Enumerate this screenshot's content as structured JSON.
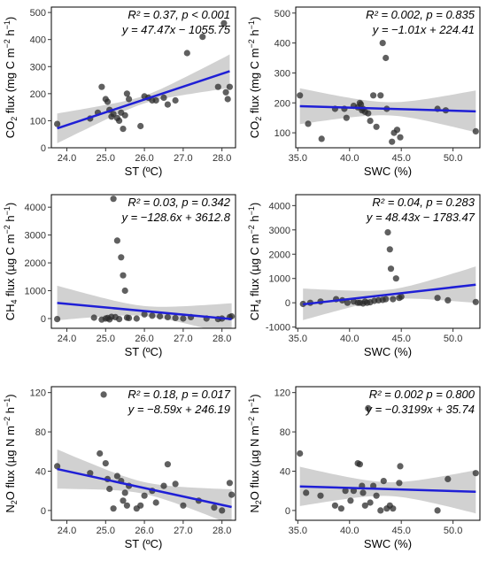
{
  "chart_data": [
    {
      "type": "scatter",
      "xlabel": "ST (ºC)",
      "ylabel": "CO2 flux (mg C m-2 h-1)",
      "ylabel_parts": [
        "CO",
        "2",
        " flux (mg C m",
        "−2",
        " h",
        "−1",
        ")"
      ],
      "xlim": [
        23.6,
        28.35
      ],
      "ylim": [
        0,
        520
      ],
      "xticks": [
        24.0,
        25.0,
        26.0,
        27.0,
        28.0
      ],
      "xtick_labels": [
        "24.0",
        "25.0",
        "26.0",
        "27.0",
        "28.0"
      ],
      "yticks": [
        0,
        100,
        200,
        300,
        400,
        500
      ],
      "ytick_labels": [
        "0",
        "100",
        "200",
        "300",
        "400",
        "500"
      ],
      "annotation_r2": "R² = 0.37, p < 0.001",
      "annotation_eq": "y = 47.47x − 1055.75",
      "regression": {
        "slope": 47.47,
        "intercept": -1055.75
      },
      "ci_halfwidth": [
        55,
        14,
        62
      ],
      "x": [
        23.75,
        24.6,
        24.8,
        24.9,
        25.0,
        25.05,
        25.1,
        25.15,
        25.2,
        25.3,
        25.35,
        25.4,
        25.45,
        25.5,
        25.55,
        25.6,
        25.9,
        26.0,
        26.1,
        26.2,
        26.3,
        26.5,
        26.6,
        26.8,
        27.1,
        27.5,
        27.9,
        28.05,
        28.1,
        28.15,
        28.2
      ],
      "y": [
        88,
        108,
        130,
        225,
        180,
        170,
        140,
        115,
        125,
        110,
        100,
        130,
        70,
        120,
        200,
        180,
        80,
        190,
        185,
        175,
        175,
        185,
        160,
        175,
        350,
        410,
        225,
        460,
        205,
        180,
        225
      ]
    },
    {
      "type": "scatter",
      "xlabel": "SWC (%)",
      "ylabel": "CO2 flux (mg C m-2 h-1)",
      "ylabel_parts": [
        "CO",
        "2",
        " flux (mg C m",
        "−2",
        " h",
        "−1",
        ")"
      ],
      "xlim": [
        34.8,
        52.6
      ],
      "ylim": [
        50,
        520
      ],
      "xticks": [
        35.0,
        40.0,
        45.0,
        50.0
      ],
      "xtick_labels": [
        "35.0",
        "40.0",
        "45.0",
        "50.0"
      ],
      "yticks": [
        100,
        200,
        300,
        400,
        500
      ],
      "ytick_labels": [
        "100",
        "200",
        "300",
        "400",
        "500"
      ],
      "annotation_r2": "R² = 0.002, p = 0.835",
      "annotation_eq": "y = −1.01x + 224.41",
      "regression": {
        "slope": -1.01,
        "intercept": 224.41
      },
      "ci_halfwidth": [
        60,
        22,
        70
      ],
      "x": [
        35.2,
        36.0,
        37.3,
        38.6,
        39.5,
        39.7,
        40.4,
        40.8,
        41.0,
        41.1,
        41.2,
        41.3,
        41.5,
        41.8,
        42.0,
        42.3,
        42.6,
        43.0,
        43.2,
        43.5,
        43.6,
        44.1,
        44.3,
        44.6,
        44.9,
        48.5,
        49.3,
        52.2
      ],
      "y": [
        225,
        130,
        80,
        180,
        180,
        150,
        190,
        185,
        200,
        195,
        175,
        180,
        170,
        165,
        140,
        225,
        120,
        225,
        400,
        350,
        180,
        70,
        100,
        110,
        85,
        180,
        175,
        105
      ]
    },
    {
      "type": "scatter",
      "xlabel": "ST (ºC)",
      "ylabel": "CH4 flux (µg C m-2 h-1)",
      "ylabel_parts": [
        "CH",
        "4",
        " flux (µg C m",
        "−2",
        " h",
        "−1",
        ")"
      ],
      "xlim": [
        23.6,
        28.35
      ],
      "ylim": [
        -350,
        4450
      ],
      "xticks": [
        24.0,
        25.0,
        26.0,
        27.0,
        28.0
      ],
      "xtick_labels": [
        "24.0",
        "25.0",
        "26.0",
        "27.0",
        "28.0"
      ],
      "yticks": [
        0,
        1000,
        2000,
        3000,
        4000
      ],
      "ytick_labels": [
        "0",
        "1000",
        "2000",
        "3000",
        "4000"
      ],
      "annotation_r2": "R² = 0.03, p = 0.342",
      "annotation_eq": "y = −128.6x + 3612.8",
      "regression": {
        "slope": -128.6,
        "intercept": 3612.8
      },
      "ci_halfwidth": [
        620,
        180,
        570
      ],
      "x": [
        23.75,
        24.7,
        24.9,
        25.0,
        25.05,
        25.1,
        25.15,
        25.2,
        25.25,
        25.3,
        25.35,
        25.4,
        25.45,
        25.5,
        25.55,
        25.6,
        25.8,
        26.0,
        26.2,
        26.4,
        26.6,
        26.8,
        27.0,
        27.2,
        27.6,
        27.9,
        28.0,
        28.2,
        28.25
      ],
      "y": [
        -20,
        30,
        -40,
        0,
        20,
        -30,
        60,
        4300,
        50,
        2800,
        -20,
        2200,
        1550,
        1000,
        30,
        20,
        0,
        150,
        100,
        80,
        50,
        20,
        0,
        50,
        0,
        -20,
        0,
        50,
        80
      ]
    },
    {
      "type": "scatter",
      "xlabel": "SWC (%)",
      "ylabel": "CH4 flux (µg C m-2 h-1)",
      "ylabel_parts": [
        "CH",
        "4",
        " flux (µg C m",
        "−2",
        " h",
        "−1",
        ")"
      ],
      "xlim": [
        34.8,
        52.6
      ],
      "ylim": [
        -1050,
        4450
      ],
      "xticks": [
        35.0,
        40.0,
        45.0,
        50.0
      ],
      "xtick_labels": [
        "35.0",
        "40.0",
        "45.0",
        "50.0"
      ],
      "yticks": [
        -1000,
        0,
        1000,
        2000,
        3000,
        4000
      ],
      "ytick_labels": [
        "-1000",
        "0",
        "1000",
        "2000",
        "3000",
        "4000"
      ],
      "annotation_r2": "R² = 0.04, p = 0.283",
      "annotation_eq": "y = 48.43x − 1783.47",
      "regression": {
        "slope": 48.43,
        "intercept": -1783.47
      },
      "ci_halfwidth": [
        650,
        200,
        750
      ],
      "x": [
        35.5,
        36.2,
        37.2,
        38.7,
        39.3,
        39.8,
        40.4,
        40.8,
        41.0,
        41.3,
        41.5,
        41.7,
        42.0,
        42.4,
        42.8,
        43.2,
        43.5,
        43.7,
        43.9,
        44.0,
        44.2,
        44.5,
        44.8,
        45.0,
        48.5,
        49.5,
        52.2
      ],
      "y": [
        -50,
        0,
        50,
        150,
        100,
        0,
        50,
        0,
        0,
        -30,
        50,
        0,
        20,
        80,
        100,
        120,
        150,
        2900,
        2200,
        1400,
        150,
        1000,
        200,
        250,
        200,
        100,
        30
      ]
    },
    {
      "type": "scatter",
      "xlabel": "ST (ºC)",
      "ylabel": "N2O flux (µg N m-2 h-1)",
      "ylabel_parts": [
        "N",
        "2",
        "O flux (µg N m",
        "−2",
        " h",
        "−1",
        ")"
      ],
      "xlim": [
        23.6,
        28.35
      ],
      "ylim": [
        -10,
        126
      ],
      "xticks": [
        24.0,
        25.0,
        26.0,
        27.0,
        28.0
      ],
      "xtick_labels": [
        "24.0",
        "25.0",
        "26.0",
        "27.0",
        "28.0"
      ],
      "yticks": [
        0,
        40,
        80,
        120
      ],
      "ytick_labels": [
        "0",
        "40",
        "80",
        "120"
      ],
      "annotation_r2": "R² = 0.18, p = 0.017",
      "annotation_eq": "y = −8.59x + 246.19",
      "regression": {
        "slope": -8.59,
        "intercept": 246.19
      },
      "ci_halfwidth": [
        20,
        6,
        18
      ],
      "x": [
        23.75,
        24.6,
        24.85,
        24.95,
        25.0,
        25.05,
        25.1,
        25.2,
        25.3,
        25.4,
        25.45,
        25.5,
        25.55,
        25.6,
        25.8,
        25.9,
        26.0,
        26.2,
        26.3,
        26.5,
        26.6,
        26.8,
        27.0,
        27.4,
        27.8,
        28.0,
        28.2,
        28.25
      ],
      "y": [
        45,
        38,
        58,
        118,
        48,
        32,
        22,
        2,
        35,
        30,
        10,
        18,
        5,
        25,
        2,
        5,
        15,
        20,
        8,
        25,
        47,
        27,
        5,
        10,
        3,
        0,
        28,
        16
      ]
    },
    {
      "type": "scatter",
      "xlabel": "SWC (%)",
      "ylabel": "N2O flux (µg N m-2 h-1)",
      "ylabel_parts": [
        "N",
        "2",
        "O flux (µg N m",
        "−2",
        " h",
        "−1",
        ")"
      ],
      "xlim": [
        34.8,
        52.6
      ],
      "ylim": [
        -10,
        126
      ],
      "xticks": [
        35.0,
        40.0,
        45.0,
        50.0
      ],
      "xtick_labels": [
        "35.0",
        "40.0",
        "45.0",
        "50.0"
      ],
      "yticks": [
        0,
        40,
        80,
        120
      ],
      "ytick_labels": [
        "0",
        "40",
        "80",
        "120"
      ],
      "annotation_r2": "R² = 0.002 p = 0.800",
      "annotation_eq": "y = −0.3199x + 35.74",
      "regression": {
        "slope": -0.3199,
        "intercept": 35.74
      },
      "ci_halfwidth": [
        20,
        7,
        22
      ],
      "x": [
        35.2,
        35.8,
        37.2,
        38.6,
        39.2,
        39.6,
        40.1,
        40.4,
        40.8,
        41.0,
        41.2,
        41.3,
        41.5,
        41.8,
        42.0,
        42.3,
        42.6,
        43.0,
        43.3,
        43.6,
        43.9,
        44.2,
        44.8,
        44.9,
        48.5,
        49.5,
        52.2
      ],
      "y": [
        58,
        18,
        15,
        5,
        2,
        20,
        10,
        20,
        48,
        47,
        25,
        18,
        5,
        104,
        8,
        25,
        15,
        0,
        30,
        2,
        5,
        2,
        28,
        45,
        0,
        32,
        38
      ]
    }
  ]
}
